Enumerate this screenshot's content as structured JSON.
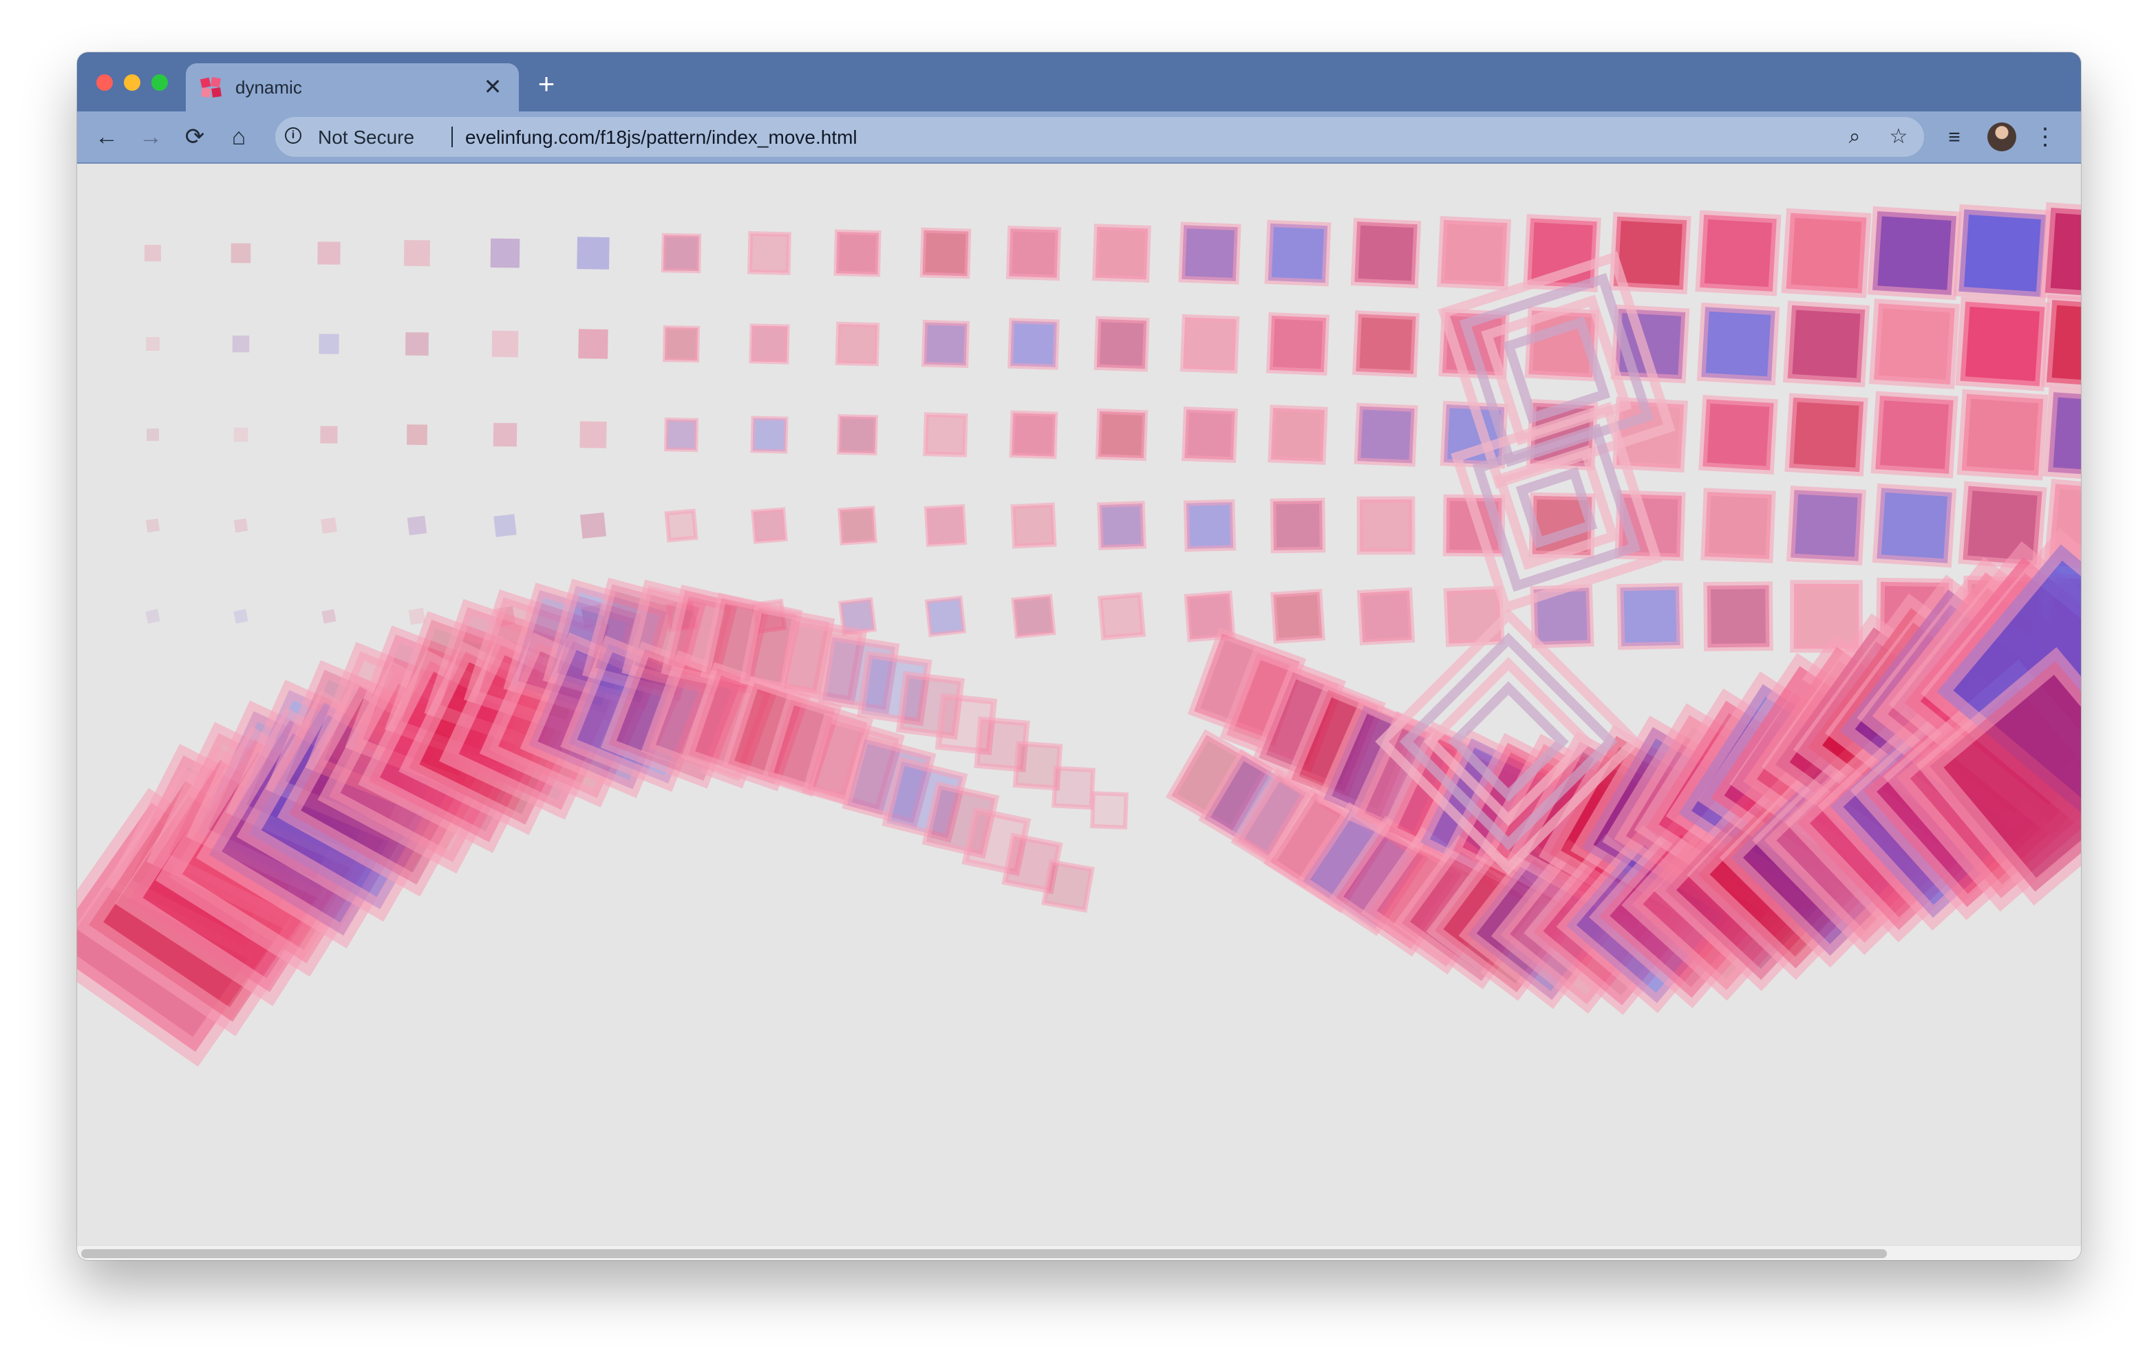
{
  "browser": {
    "tab_title": "dynamic",
    "tab_close": "✕",
    "new_tab": "+",
    "security_label": "Not Secure",
    "url": "evelinfung.com/f18js/pattern/index_move.html",
    "nav": {
      "back": "←",
      "forward": "→",
      "reload": "⟳",
      "home": "⌂"
    },
    "icons": {
      "info": "info-icon",
      "zoom": "zoom-icon",
      "star": "star-icon",
      "media": "media-controls-icon",
      "menu": "kebab-menu-icon"
    }
  },
  "art": {
    "description_colors": [
      "#e81e5a",
      "#d40f3a",
      "#7b2fa8",
      "#5b4fd6",
      "#f36f8f"
    ],
    "background": "#e5e5e5"
  }
}
